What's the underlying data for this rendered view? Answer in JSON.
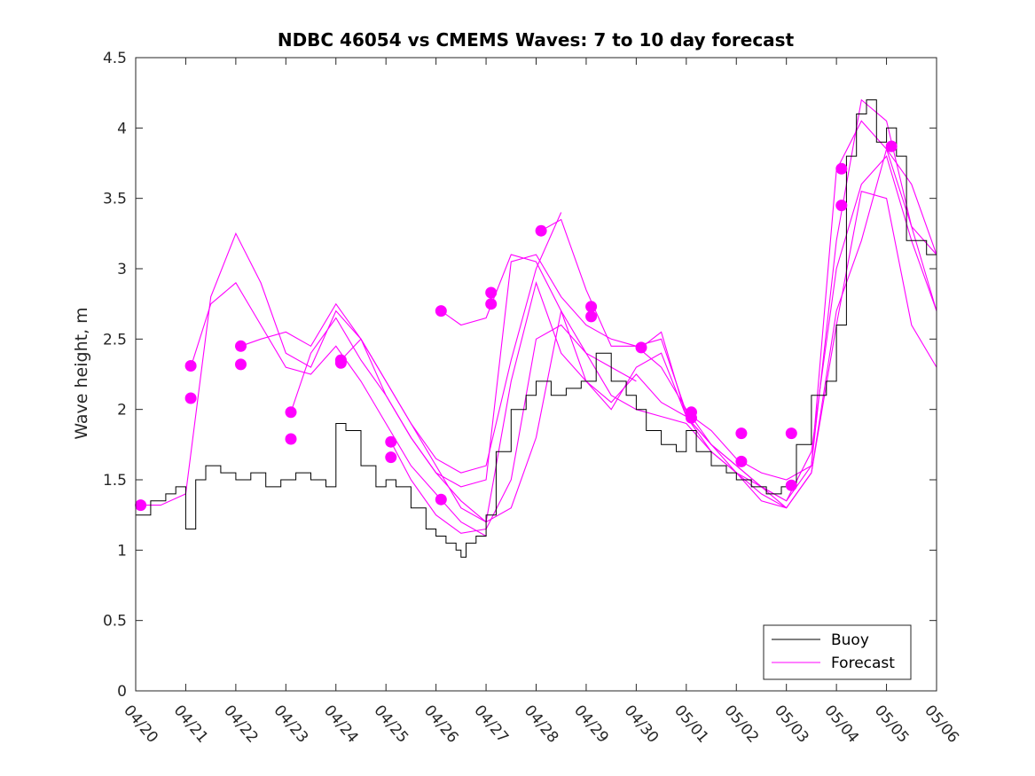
{
  "chart_data": {
    "type": "line",
    "title": "NDBC 46054 vs CMEMS Waves: 7 to 10 day forecast",
    "xlabel": "",
    "ylabel": "Wave height, m",
    "x_tick_labels": [
      "04/20",
      "04/21",
      "04/22",
      "04/23",
      "04/24",
      "04/25",
      "04/26",
      "04/27",
      "04/28",
      "04/29",
      "04/30",
      "05/01",
      "05/02",
      "05/03",
      "05/04",
      "05/05",
      "05/06"
    ],
    "y_tick_labels": [
      "0",
      "0.5",
      "1",
      "1.5",
      "2",
      "2.5",
      "3",
      "3.5",
      "4",
      "4.5"
    ],
    "xlim": [
      0,
      16
    ],
    "ylim": [
      0,
      4.5
    ],
    "grid": false,
    "legend_position": "bottom-right",
    "colors": {
      "buoy": "#000000",
      "forecast": "#ff00ff"
    },
    "series": [
      {
        "name": "Buoy",
        "kind": "observed",
        "x": [
          0,
          0.3,
          0.6,
          0.8,
          1.0,
          1.2,
          1.4,
          1.7,
          2.0,
          2.3,
          2.6,
          2.9,
          3.2,
          3.5,
          3.8,
          4.0,
          4.2,
          4.5,
          4.8,
          5.0,
          5.2,
          5.5,
          5.8,
          6.0,
          6.2,
          6.4,
          6.5,
          6.6,
          6.8,
          7.0,
          7.2,
          7.5,
          7.8,
          8.0,
          8.3,
          8.6,
          8.9,
          9.2,
          9.5,
          9.8,
          10.0,
          10.2,
          10.5,
          10.8,
          11.0,
          11.2,
          11.5,
          11.8,
          12.0,
          12.3,
          12.6,
          12.9,
          13.2,
          13.5,
          13.8,
          14.0,
          14.2,
          14.4,
          14.6,
          14.8,
          15.0,
          15.2,
          15.4,
          15.6,
          15.8,
          16.0
        ],
        "y": [
          1.25,
          1.35,
          1.4,
          1.45,
          1.15,
          1.5,
          1.6,
          1.55,
          1.5,
          1.55,
          1.45,
          1.5,
          1.55,
          1.5,
          1.45,
          1.9,
          1.85,
          1.6,
          1.45,
          1.5,
          1.45,
          1.3,
          1.15,
          1.1,
          1.05,
          1.0,
          0.95,
          1.05,
          1.1,
          1.25,
          1.7,
          2.0,
          2.1,
          2.2,
          2.1,
          2.15,
          2.2,
          2.4,
          2.2,
          2.1,
          2.0,
          1.85,
          1.75,
          1.7,
          1.85,
          1.7,
          1.6,
          1.55,
          1.5,
          1.45,
          1.4,
          1.45,
          1.75,
          2.1,
          2.2,
          2.6,
          3.8,
          4.1,
          4.2,
          3.9,
          4.0,
          3.8,
          3.2,
          3.2,
          3.1,
          3.05
        ]
      },
      {
        "name": "Forecast",
        "kind": "forecast",
        "x": [
          0,
          0.5,
          1.0,
          1.5,
          2.0,
          2.5,
          3.0,
          3.5,
          4.0,
          4.5,
          5.0,
          5.5,
          6.0,
          6.5,
          7.0,
          7.5,
          8.0,
          8.5,
          9.0,
          9.5,
          10.0,
          10.5,
          11.0,
          11.5,
          12.0,
          12.5,
          13.0,
          13.5,
          14.0,
          14.5,
          15.0,
          15.5,
          16.0
        ],
        "y": [
          1.32,
          1.32,
          1.4,
          2.8,
          3.25,
          2.9,
          2.4,
          2.3,
          2.7,
          2.5,
          2.1,
          1.8,
          1.55,
          1.45,
          1.5,
          3.05,
          3.1,
          2.8,
          2.6,
          2.5,
          2.45,
          2.3,
          2.0,
          1.75,
          1.6,
          1.45,
          1.35,
          1.6,
          3.7,
          4.05,
          3.85,
          3.3,
          3.1
        ]
      },
      {
        "kind": "forecast",
        "x": [
          1.1,
          1.5,
          2.0,
          2.5,
          3.0,
          3.5,
          4.0,
          4.5,
          5.0,
          5.5,
          6.0,
          6.5,
          7.0
        ],
        "y": [
          2.3,
          2.75,
          2.9,
          2.6,
          2.3,
          2.25,
          2.45,
          2.2,
          1.9,
          1.6,
          1.4,
          1.2,
          1.1
        ]
      },
      {
        "kind": "forecast",
        "x": [
          2.1,
          2.5,
          3.0,
          3.5,
          4.0,
          4.5,
          5.0,
          5.5,
          6.0,
          6.5,
          7.0,
          7.5,
          8.0,
          8.5
        ],
        "y": [
          2.45,
          2.5,
          2.55,
          2.45,
          2.75,
          2.5,
          2.2,
          1.9,
          1.65,
          1.55,
          1.6,
          2.35,
          3.0,
          3.4
        ]
      },
      {
        "kind": "forecast",
        "x": [
          3.1,
          3.5,
          4.0,
          4.5,
          5.0,
          5.5,
          6.0,
          6.5,
          7.0,
          7.5,
          8.0,
          8.5,
          9.0,
          9.5,
          10.0
        ],
        "y": [
          1.98,
          2.4,
          2.65,
          2.35,
          2.1,
          1.8,
          1.55,
          1.35,
          1.2,
          1.3,
          1.8,
          2.7,
          2.4,
          2.3,
          2.2
        ]
      },
      {
        "kind": "forecast",
        "x": [
          4.1,
          4.5,
          5.0,
          5.5,
          6.0,
          6.5,
          7.0,
          7.5,
          8.0,
          8.5,
          9.0,
          9.5,
          10.0,
          10.5,
          11.0,
          11.5,
          12.0,
          12.5,
          13.0
        ],
        "y": [
          2.35,
          2.5,
          2.2,
          1.9,
          1.6,
          1.3,
          1.2,
          2.2,
          2.9,
          2.4,
          2.2,
          2.0,
          2.3,
          2.4,
          1.95,
          1.75,
          1.55,
          1.35,
          1.3
        ]
      },
      {
        "kind": "forecast",
        "x": [
          5.1,
          5.5,
          6.0,
          6.5,
          7.0,
          7.5,
          8.0,
          8.5,
          9.0,
          9.5,
          10.0,
          10.5,
          11.0,
          11.5,
          12.0,
          12.5,
          13.0,
          13.5,
          14.0,
          14.5,
          15.0,
          15.5,
          16.0
        ],
        "y": [
          1.77,
          1.5,
          1.25,
          1.12,
          1.15,
          1.5,
          2.5,
          2.6,
          2.4,
          2.1,
          2.0,
          1.95,
          1.9,
          1.7,
          1.55,
          1.4,
          1.3,
          1.55,
          2.6,
          3.55,
          3.5,
          2.6,
          2.3
        ]
      },
      {
        "kind": "forecast",
        "x": [
          6.1,
          6.5,
          7.0,
          7.5,
          8.0,
          8.5,
          9.0,
          9.5,
          10.0,
          10.5,
          11.0,
          11.5,
          12.0,
          12.5,
          13.0,
          13.5,
          14.0,
          14.5,
          15.0,
          15.5,
          16.0
        ],
        "y": [
          2.7,
          2.6,
          2.65,
          3.1,
          3.05,
          2.7,
          2.2,
          2.05,
          2.25,
          2.05,
          1.95,
          1.75,
          1.6,
          1.45,
          1.35,
          1.7,
          3.0,
          3.6,
          3.8,
          3.2,
          2.7
        ]
      },
      {
        "kind": "forecast",
        "x": [
          8.1,
          8.5,
          9.0,
          9.5,
          10.0,
          10.5,
          11.0,
          11.5,
          12.0,
          12.5,
          13.0,
          13.5,
          14.0,
          14.5,
          15.0,
          15.5,
          16.0
        ],
        "y": [
          3.27,
          3.35,
          2.85,
          2.45,
          2.45,
          2.5,
          1.98,
          1.85,
          1.65,
          1.55,
          1.5,
          1.6,
          3.2,
          4.2,
          4.05,
          3.3,
          2.7
        ]
      },
      {
        "kind": "forecast",
        "x": [
          10.1,
          10.5,
          11.0,
          11.5,
          12.0,
          12.5,
          13.0,
          13.5,
          14.0,
          14.5,
          15.0,
          15.5,
          16.0
        ],
        "y": [
          2.44,
          2.55,
          1.95,
          1.7,
          1.55,
          1.45,
          1.3,
          1.55,
          2.7,
          3.2,
          3.85,
          3.6,
          3.1
        ]
      }
    ],
    "forecast_start_markers": [
      {
        "x": 0.1,
        "y": 1.32
      },
      {
        "x": 1.1,
        "y": 2.31
      },
      {
        "x": 1.1,
        "y": 2.08
      },
      {
        "x": 2.1,
        "y": 2.45
      },
      {
        "x": 2.1,
        "y": 2.32
      },
      {
        "x": 3.1,
        "y": 1.98
      },
      {
        "x": 3.1,
        "y": 1.79
      },
      {
        "x": 4.1,
        "y": 2.35
      },
      {
        "x": 4.1,
        "y": 2.33
      },
      {
        "x": 5.1,
        "y": 1.77
      },
      {
        "x": 5.1,
        "y": 1.66
      },
      {
        "x": 6.1,
        "y": 2.7
      },
      {
        "x": 6.1,
        "y": 1.36
      },
      {
        "x": 7.1,
        "y": 2.83
      },
      {
        "x": 7.1,
        "y": 2.75
      },
      {
        "x": 8.1,
        "y": 3.27
      },
      {
        "x": 9.1,
        "y": 2.73
      },
      {
        "x": 9.1,
        "y": 2.66
      },
      {
        "x": 10.1,
        "y": 2.44
      },
      {
        "x": 11.1,
        "y": 1.98
      },
      {
        "x": 11.1,
        "y": 1.94
      },
      {
        "x": 12.1,
        "y": 1.83
      },
      {
        "x": 12.1,
        "y": 1.63
      },
      {
        "x": 13.1,
        "y": 1.83
      },
      {
        "x": 13.1,
        "y": 1.46
      },
      {
        "x": 14.1,
        "y": 3.71
      },
      {
        "x": 14.1,
        "y": 3.45
      },
      {
        "x": 15.1,
        "y": 3.87
      }
    ],
    "legend": [
      "Buoy",
      "Forecast"
    ]
  }
}
